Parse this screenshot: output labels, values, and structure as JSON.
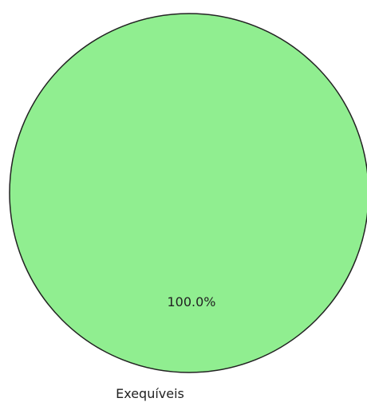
{
  "chart_data": {
    "type": "pie",
    "slices": [
      {
        "label": "Exequíveis",
        "value": 100.0,
        "percent_label": "100.0%",
        "color": "#90ee90"
      }
    ],
    "edge_color": "#222222"
  }
}
